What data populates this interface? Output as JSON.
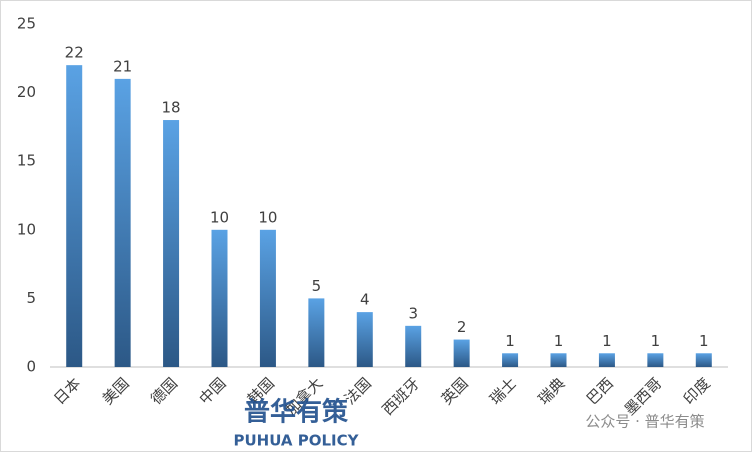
{
  "chart_data": {
    "type": "bar",
    "categories": [
      "日本",
      "美国",
      "德国",
      "中国",
      "韩国",
      "加拿大",
      "法国",
      "西班牙",
      "英国",
      "瑞士",
      "瑞典",
      "巴西",
      "墨西哥",
      "印度"
    ],
    "values": [
      22,
      21,
      18,
      10,
      10,
      5,
      4,
      3,
      2,
      1,
      1,
      1,
      1,
      1
    ],
    "gradient": [
      "#5aa2e4",
      "#2c5886"
    ],
    "ylim": [
      0,
      25
    ],
    "yticks": [
      0,
      5,
      10,
      15,
      20,
      25
    ],
    "grid": false,
    "watermark": {
      "logo": "普华有策",
      "logo_sub": "PUHUA POLICY",
      "account": "公众号 · 普华有策"
    }
  }
}
